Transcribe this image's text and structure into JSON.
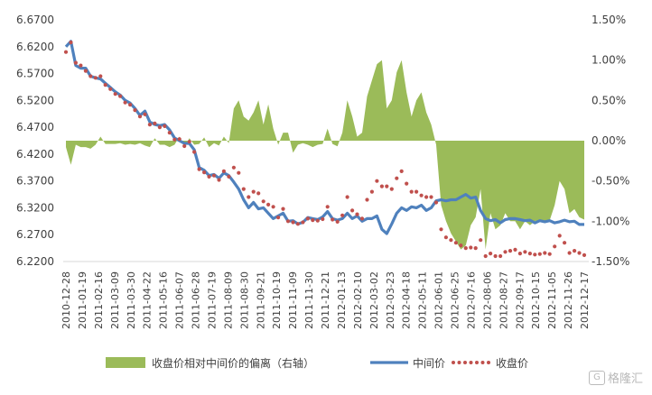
{
  "colors": {
    "deviation": "#9BBB59",
    "mid": "#4F81BD",
    "close": "#C0504D",
    "axis": "#D9D9D9",
    "text": "#404040"
  },
  "watermark": {
    "logo": "G",
    "text": "格隆汇"
  },
  "chart_data": {
    "type": "bar+line",
    "title": "",
    "left_axis": {
      "ylim": [
        6.22,
        6.67
      ],
      "ticks": [
        "6.6700",
        "6.6200",
        "6.5700",
        "6.5200",
        "6.4700",
        "6.4200",
        "6.3700",
        "6.3200",
        "6.2700",
        "6.2200"
      ]
    },
    "right_axis": {
      "ylim": [
        -1.5,
        1.5
      ],
      "ticks": [
        "1.50%",
        "1.00%",
        "0.50%",
        "0.00%",
        "-0.50%",
        "-1.00%",
        "-1.50%"
      ]
    },
    "x_tick_labels": [
      "2010-12-28",
      "2011-01-19",
      "2011-02-16",
      "2011-03-09",
      "2011-03-30",
      "2011-04-22",
      "2011-05-16",
      "2011-06-07",
      "2011-06-28",
      "2011-07-19",
      "2011-08-09",
      "2011-08-30",
      "2011-09-21",
      "2011-10-19",
      "2011-11-09",
      "2011-11-30",
      "2011-12-21",
      "2012-01-13",
      "2012-02-10",
      "2012-03-02",
      "2012-03-23",
      "2012-04-18",
      "2012-05-11",
      "2012-06-01",
      "2012-06-25",
      "2012-07-16",
      "2012-08-06",
      "2012-08-27",
      "2012-09-17",
      "2012-10-15",
      "2012-11-05",
      "2012-11-26",
      "2012-12-17"
    ],
    "legend": {
      "placement": "bottom",
      "items": [
        "收盘价相对中间价的偏离（右轴）",
        "中间价",
        "收盘价"
      ]
    },
    "series": [
      {
        "name": "收盘价相对中间价的偏离（右轴）",
        "axis": "right",
        "kind": "area",
        "values": [
          -0.08,
          -0.3,
          -0.05,
          -0.08,
          -0.08,
          -0.1,
          -0.05,
          0.05,
          -0.04,
          -0.04,
          -0.04,
          -0.03,
          -0.05,
          -0.04,
          -0.05,
          -0.03,
          -0.06,
          -0.08,
          0.03,
          -0.05,
          -0.05,
          -0.08,
          -0.05,
          0.05,
          -0.08,
          0.03,
          -0.05,
          -0.04,
          0.04,
          -0.08,
          -0.03,
          -0.06,
          0.05,
          -0.03,
          0.4,
          0.5,
          0.3,
          0.25,
          0.35,
          0.5,
          0.2,
          0.45,
          0.15,
          -0.05,
          0.1,
          0.1,
          -0.15,
          -0.05,
          -0.03,
          -0.05,
          -0.08,
          -0.05,
          -0.04,
          0.15,
          -0.04,
          -0.07,
          0.1,
          0.5,
          0.3,
          0.05,
          0.1,
          0.55,
          0.75,
          0.95,
          1.0,
          0.4,
          0.5,
          0.85,
          1.0,
          0.6,
          0.3,
          0.5,
          0.6,
          0.35,
          0.2,
          -0.05,
          -0.8,
          -1.0,
          -1.15,
          -1.25,
          -1.35,
          -1.3,
          -1.05,
          -0.95,
          -0.6,
          -1.35,
          -0.9,
          -1.1,
          -1.05,
          -0.9,
          -1.0,
          -1.0,
          -1.1,
          -1.0,
          -1.05,
          -1.0,
          -0.98,
          -1.02,
          -0.99,
          -0.8,
          -0.5,
          -0.6,
          -0.9,
          -0.85,
          -0.95,
          -0.98
        ]
      },
      {
        "name": "中间价",
        "axis": "left",
        "kind": "line",
        "values": [
          6.62,
          6.63,
          6.585,
          6.58,
          6.58,
          6.565,
          6.562,
          6.56,
          6.552,
          6.544,
          6.536,
          6.53,
          6.52,
          6.515,
          6.505,
          6.492,
          6.5,
          6.48,
          6.475,
          6.473,
          6.475,
          6.465,
          6.45,
          6.445,
          6.44,
          6.44,
          6.428,
          6.395,
          6.39,
          6.38,
          6.382,
          6.375,
          6.385,
          6.38,
          6.368,
          6.355,
          6.335,
          6.32,
          6.33,
          6.318,
          6.32,
          6.31,
          6.3,
          6.305,
          6.31,
          6.295,
          6.296,
          6.29,
          6.293,
          6.302,
          6.3,
          6.298,
          6.303,
          6.313,
          6.3,
          6.297,
          6.3,
          6.31,
          6.3,
          6.305,
          6.295,
          6.3,
          6.3,
          6.305,
          6.28,
          6.272,
          6.29,
          6.31,
          6.32,
          6.315,
          6.322,
          6.32,
          6.325,
          6.315,
          6.32,
          6.333,
          6.335,
          6.333,
          6.335,
          6.335,
          6.34,
          6.345,
          6.338,
          6.34,
          6.315,
          6.3,
          6.296,
          6.298,
          6.292,
          6.298,
          6.3,
          6.3,
          6.298,
          6.296,
          6.297,
          6.292,
          6.296,
          6.294,
          6.296,
          6.292,
          6.294,
          6.297,
          6.294,
          6.295,
          6.289,
          6.289
        ]
      },
      {
        "name": "收盘价",
        "axis": "left",
        "kind": "dotted",
        "values": [
          6.61,
          6.628,
          6.59,
          6.585,
          6.575,
          6.565,
          6.562,
          6.565,
          6.549,
          6.541,
          6.532,
          6.528,
          6.516,
          6.512,
          6.502,
          6.49,
          6.494,
          6.475,
          6.477,
          6.47,
          6.472,
          6.46,
          6.447,
          6.448,
          6.435,
          6.443,
          6.424,
          6.392,
          6.386,
          6.378,
          6.38,
          6.372,
          6.388,
          6.378,
          6.395,
          6.385,
          6.355,
          6.34,
          6.35,
          6.347,
          6.332,
          6.326,
          6.322,
          6.302,
          6.318,
          6.295,
          6.293,
          6.29,
          6.293,
          6.3,
          6.297,
          6.296,
          6.299,
          6.322,
          6.298,
          6.294,
          6.306,
          6.34,
          6.315,
          6.308,
          6.3,
          6.335,
          6.35,
          6.37,
          6.36,
          6.36,
          6.355,
          6.375,
          6.388,
          6.365,
          6.35,
          6.35,
          6.343,
          6.34,
          6.34,
          6.33,
          6.28,
          6.265,
          6.26,
          6.255,
          6.25,
          6.245,
          6.246,
          6.245,
          6.26,
          6.23,
          6.235,
          6.23,
          6.23,
          6.238,
          6.24,
          6.242,
          6.235,
          6.238,
          6.235,
          6.233,
          6.234,
          6.236,
          6.234,
          6.248,
          6.268,
          6.255,
          6.236,
          6.24,
          6.236,
          6.232
        ]
      }
    ]
  }
}
